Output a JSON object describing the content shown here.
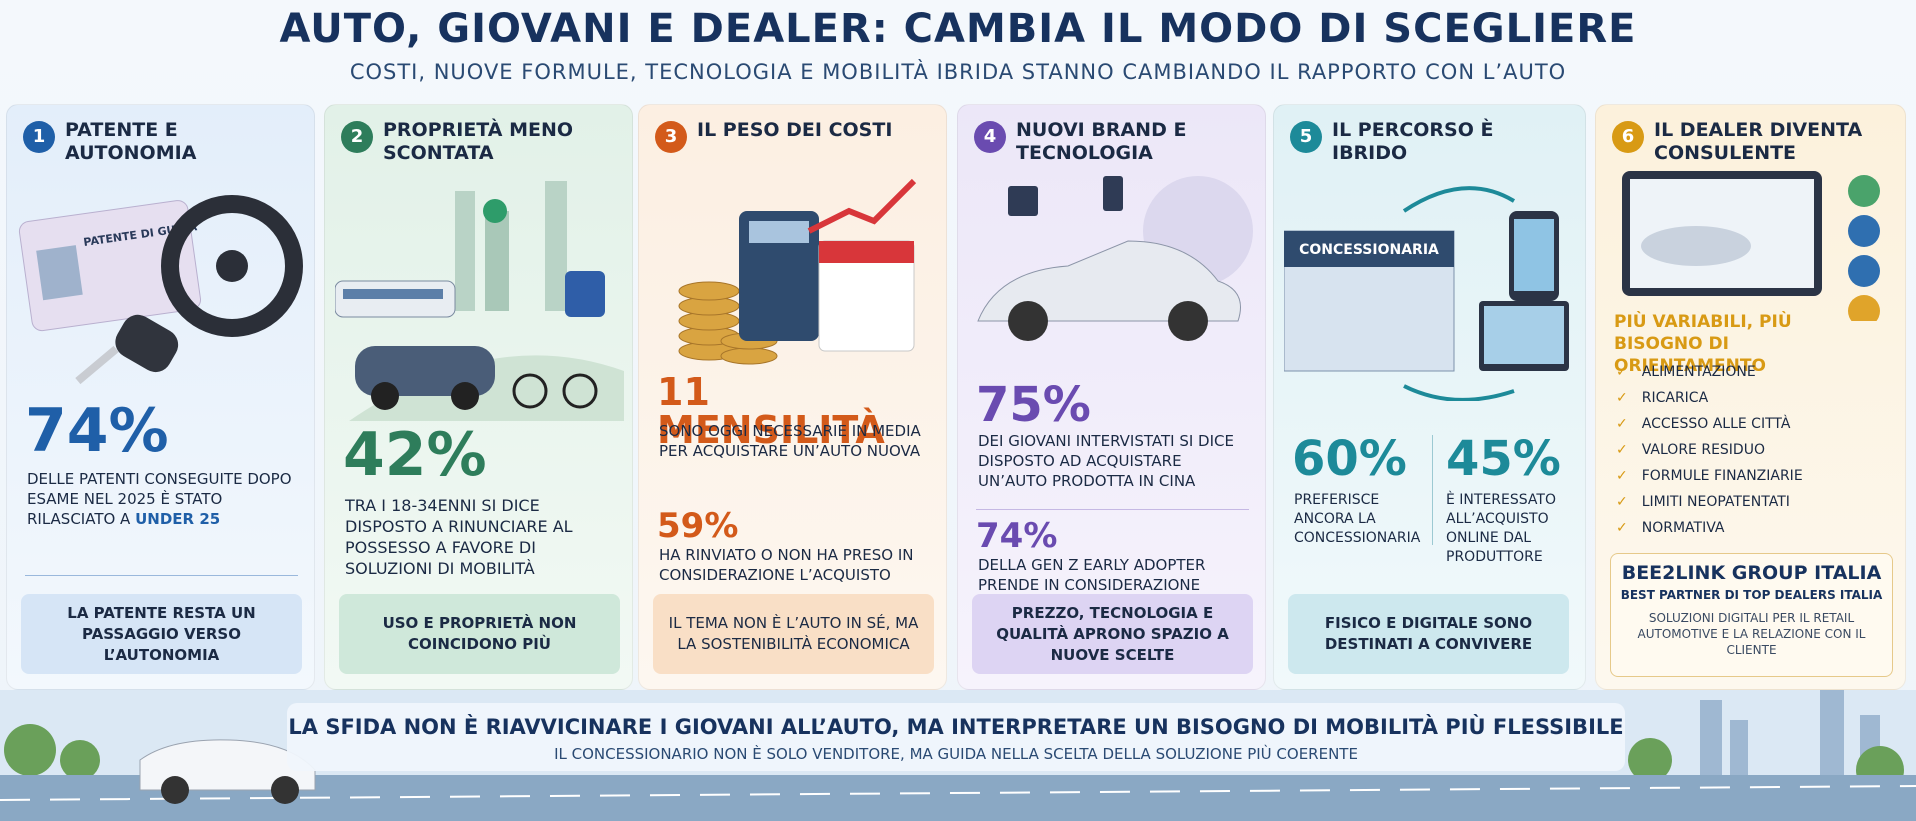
{
  "header": {
    "title": "AUTO, GIOVANI E DEALER: CAMBIA IL MODO DI SCEGLIERE",
    "subtitle": "COSTI, NUOVE FORMULE, TECNOLOGIA E MOBILITÀ IBRIDA STANNO CAMBIANDO IL RAPPORTO CON L’AUTO"
  },
  "panels": [
    {
      "number": "1",
      "title": "PATENTE E AUTONOMIA",
      "illustration_label": "PATENTE DI GUIDA",
      "stat": "74%",
      "text": "DELLE PATENTI CONSEGUITE DOPO ESAME NEL 2025 È STATO RILASCIATO A",
      "highlight": "UNDER 25",
      "note": "LA PATENTE RESTA UN PASSAGGIO VERSO L’AUTONOMIA"
    },
    {
      "number": "2",
      "title": "PROPRIETÀ MENO SCONTATA",
      "stat": "42%",
      "text": "TRA I 18-34ENNI SI DICE DISPOSTO A RINUNCIARE AL POSSESSO A FAVORE DI SOLUZIONI DI MOBILITÀ",
      "note": "USO E PROPRIETÀ NON COINCIDONO PIÙ"
    },
    {
      "number": "3",
      "title": "IL PESO DEI COSTI",
      "stats": [
        {
          "value": "11 MENSILITÀ",
          "text": "SONO OGGI NECESSARIE IN MEDIA PER ACQUISTARE UN’AUTO NUOVA"
        },
        {
          "value": "59%",
          "text": "HA RINVIATO O NON HA PRESO IN CONSIDERAZIONE L’ACQUISTO"
        }
      ],
      "note": "IL TEMA NON È L’AUTO IN SÉ, MA LA SOSTENIBILITÀ ECONOMICA"
    },
    {
      "number": "4",
      "title": "NUOVI BRAND E TECNOLOGIA",
      "stats": [
        {
          "value": "75%",
          "text": "DEI GIOVANI INTERVISTATI SI DICE DISPOSTO AD ACQUISTARE UN’AUTO PRODOTTA IN CINA"
        },
        {
          "value": "74%",
          "text": "DELLA GEN Z EARLY ADOPTER PRENDE IN CONSIDERAZIONE NUOVI BRAND"
        }
      ],
      "note": "PREZZO, TECNOLOGIA E QUALITÀ APRONO SPAZIO A NUOVE SCELTE"
    },
    {
      "number": "5",
      "title": "IL PERCORSO È IBRIDO",
      "illustration_label": "CONCESSIONARIA",
      "stats": [
        {
          "value": "60%",
          "text": "PREFERISCE ANCORA LA CONCESSIONARIA"
        },
        {
          "value": "45%",
          "text": "È INTERESSATO ALL’ACQUISTO ONLINE DAL PRODUTTORE"
        }
      ],
      "note": "FISICO E DIGITALE SONO DESTINATI A CONVIVERE"
    },
    {
      "number": "6",
      "title": "IL DEALER DIVENTA CONSULENTE",
      "heading": "PIÙ VARIABILI, PIÙ BISOGNO DI ORIENTAMENTO",
      "items": [
        "ALIMENTAZIONE",
        "RICARICA",
        "ACCESSO ALLE CITTÀ",
        "VALORE RESIDUO",
        "FORMULE FINANZIARIE",
        "LIMITI NEOPATENTATI",
        "NORMATIVA"
      ],
      "brand": "BEE2LINK GROUP ITALIA",
      "tagline": "BEST PARTNER DI TOP DEALERS ITALIA",
      "description": "SOLUZIONI DIGITALI PER IL RETAIL AUTOMOTIVE E LA RELAZIONE CON IL CLIENTE"
    }
  ],
  "footer": {
    "headline": "LA SFIDA NON È RIAVVICINARE I GIOVANI ALL’AUTO, MA INTERPRETARE UN BISOGNO DI MOBILITÀ PIÙ FLESSIBILE",
    "subline": "IL CONCESSIONARIO NON È SOLO VENDITORE, MA GUIDA NELLA SCELTA DELLA SOLUZIONE PIÙ COERENTE"
  }
}
